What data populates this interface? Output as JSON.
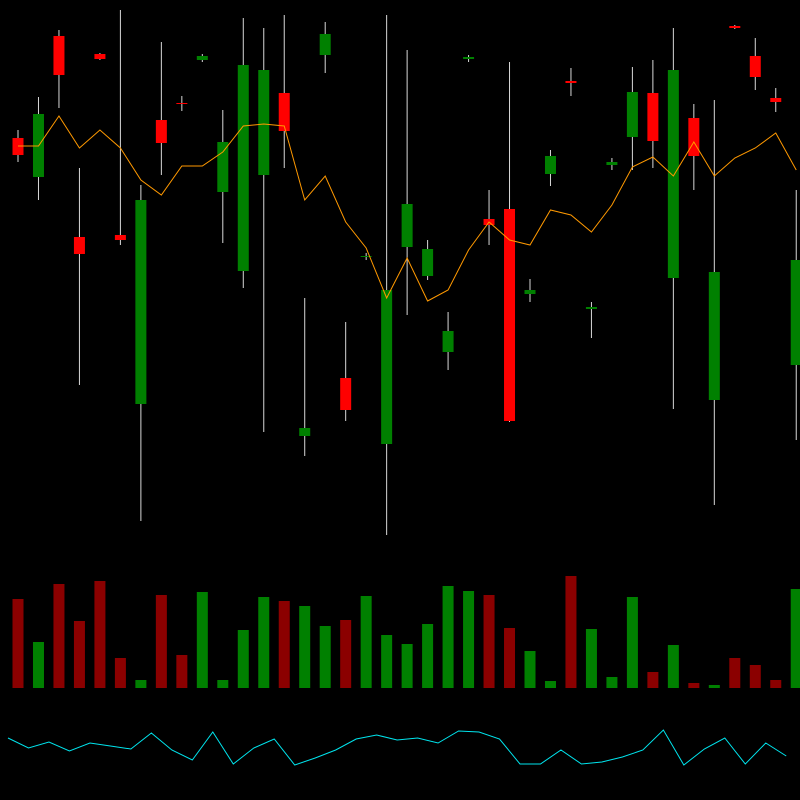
{
  "chart_data": [
    {
      "type": "candlestick",
      "open": [
        402,
        363,
        504,
        303,
        486,
        305,
        136,
        420,
        437,
        480,
        348,
        269,
        365,
        447,
        104,
        485,
        162,
        283,
        96,
        293,
        264,
        188,
        481,
        321,
        331,
        246,
        366,
        459,
        231,
        375,
        403,
        447,
        262,
        422,
        140,
        514,
        484,
        442,
        175
      ],
      "close": [
        385,
        426,
        465,
        286,
        481,
        300,
        340,
        397,
        436,
        484,
        398,
        475,
        470,
        409,
        112,
        506,
        130,
        284,
        250,
        336,
        291,
        209,
        483,
        315,
        119,
        250,
        384,
        457,
        233,
        378,
        448,
        399,
        470,
        384,
        268,
        512,
        463,
        438,
        280
      ],
      "high": [
        410,
        443,
        510,
        372,
        487,
        530,
        355,
        498,
        444,
        486,
        430,
        522,
        512,
        525,
        242,
        518,
        218,
        287,
        525,
        490,
        300,
        228,
        485,
        350,
        478,
        261,
        390,
        472,
        238,
        382,
        473,
        480,
        512,
        436,
        440,
        515,
        502,
        452,
        350
      ],
      "low": [
        378,
        340,
        432,
        155,
        480,
        295,
        19,
        365,
        429,
        478,
        297,
        252,
        108,
        372,
        84,
        467,
        119,
        280,
        5,
        225,
        260,
        170,
        478,
        295,
        118,
        238,
        354,
        444,
        202,
        370,
        370,
        372,
        131,
        350,
        35,
        511,
        450,
        428,
        100
      ],
      "up_color": "#008000",
      "down_color": "#ff0000",
      "wick_color": "#d8d8d8",
      "ylim": [
        0,
        540
      ],
      "series": [
        {
          "color": "#ff9900",
          "values": [
            394,
            394,
            424,
            392,
            410,
            392,
            360,
            345,
            374,
            374,
            388,
            414,
            416,
            414,
            340,
            364,
            318,
            292,
            242,
            282,
            239,
            250,
            290,
            318,
            300,
            295,
            330,
            325,
            308,
            335,
            373,
            383,
            364,
            398,
            364,
            382,
            392,
            407,
            370
          ]
        }
      ]
    },
    {
      "type": "volume",
      "values": [
        89,
        46,
        104,
        67,
        107,
        30,
        8,
        93,
        33,
        96,
        8,
        58,
        91,
        87,
        82,
        62,
        68,
        92,
        53,
        44,
        64,
        102,
        97,
        93,
        60,
        37,
        7,
        112,
        59,
        11,
        91,
        16,
        43,
        5,
        3,
        30,
        23,
        8,
        99
      ],
      "up_color": "#008000",
      "down_color": "#8b0000",
      "ylim": [
        0,
        120
      ]
    },
    {
      "type": "line",
      "color": "#00e5ee",
      "values": [
        52,
        42,
        48,
        39,
        47,
        44,
        41,
        57,
        40,
        30,
        58,
        26,
        42,
        51,
        25,
        32,
        40,
        51,
        55,
        50,
        52,
        47,
        59,
        58,
        51,
        26,
        26,
        40,
        26,
        28,
        33,
        40,
        60,
        25,
        41,
        52,
        26,
        47,
        34
      ],
      "ylim": [
        0,
        80
      ]
    }
  ]
}
